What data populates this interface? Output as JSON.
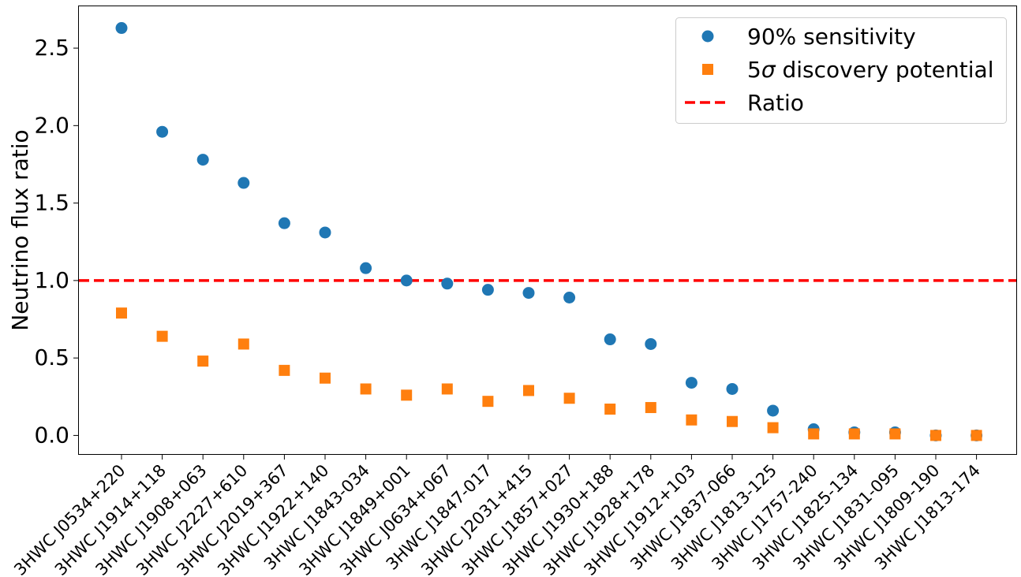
{
  "chart_data": {
    "type": "scatter",
    "title": "",
    "xlabel": "",
    "ylabel": "Neutrino flux ratio",
    "ylim": [
      -0.12,
      2.77
    ],
    "yticks": [
      "0.0",
      "0.5",
      "1.0",
      "1.5",
      "2.0",
      "2.5"
    ],
    "ytick_values": [
      0.0,
      0.5,
      1.0,
      1.5,
      2.0,
      2.5
    ],
    "grid": false,
    "legend_placement": "top-right",
    "categories": [
      "3HWC J0534+220",
      "3HWC J1914+118",
      "3HWC J1908+063",
      "3HWC J2227+610",
      "3HWC J2019+367",
      "3HWC J1922+140",
      "3HWC J1843-034",
      "3HWC J1849+001",
      "3HWC J0634+067",
      "3HWC J1847-017",
      "3HWC J2031+415",
      "3HWC J1857+027",
      "3HWC J1930+188",
      "3HWC J1928+178",
      "3HWC J1912+103",
      "3HWC J1837-066",
      "3HWC J1813-125",
      "3HWC J1757-240",
      "3HWC J1825-134",
      "3HWC J1831-095",
      "3HWC J1809-190",
      "3HWC J1813-174"
    ],
    "series": [
      {
        "name": "90% sensitivity",
        "marker": "circle",
        "color": "#1f77b4",
        "values": [
          2.63,
          1.96,
          1.78,
          1.63,
          1.37,
          1.31,
          1.08,
          1.0,
          0.98,
          0.94,
          0.92,
          0.89,
          0.62,
          0.59,
          0.34,
          0.3,
          0.16,
          0.04,
          0.02,
          0.02,
          0.0,
          0.0
        ]
      },
      {
        "name_prefix": "5",
        "name_symbol": "σ",
        "name_suffix": " discovery potential",
        "marker": "square",
        "color": "#ff7f0e",
        "values": [
          0.79,
          0.64,
          0.48,
          0.59,
          0.42,
          0.37,
          0.3,
          0.26,
          0.3,
          0.22,
          0.29,
          0.24,
          0.17,
          0.18,
          0.1,
          0.09,
          0.05,
          0.01,
          0.01,
          0.01,
          0.0,
          0.0
        ]
      }
    ],
    "reference_line": {
      "name": "Ratio",
      "y": 1.0,
      "style": "dashed",
      "color": "#ff0000"
    }
  }
}
